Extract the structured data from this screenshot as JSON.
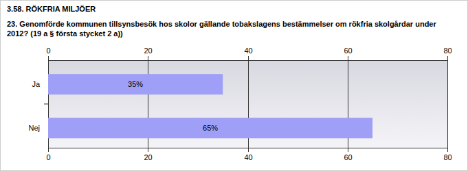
{
  "chart_data": {
    "type": "bar",
    "title": "3.58. RÖKFRIA MILJÖER",
    "subtitle": "23. Genomförde kommunen tillsynsbesök hos skolor gällande tobakslagens bestämmelser om rökfria skolgårdar under 2012? (19 a § första stycket 2 a))",
    "categories": [
      "Ja",
      "Nej"
    ],
    "values": [
      35,
      65
    ],
    "value_labels": [
      "35%",
      "65%"
    ],
    "color": "#9f9ff7",
    "orientation": "horizontal",
    "data_labels": true,
    "xlim": [
      0,
      80
    ],
    "xticks": [
      0,
      20,
      40,
      60,
      80
    ],
    "grid": true
  }
}
